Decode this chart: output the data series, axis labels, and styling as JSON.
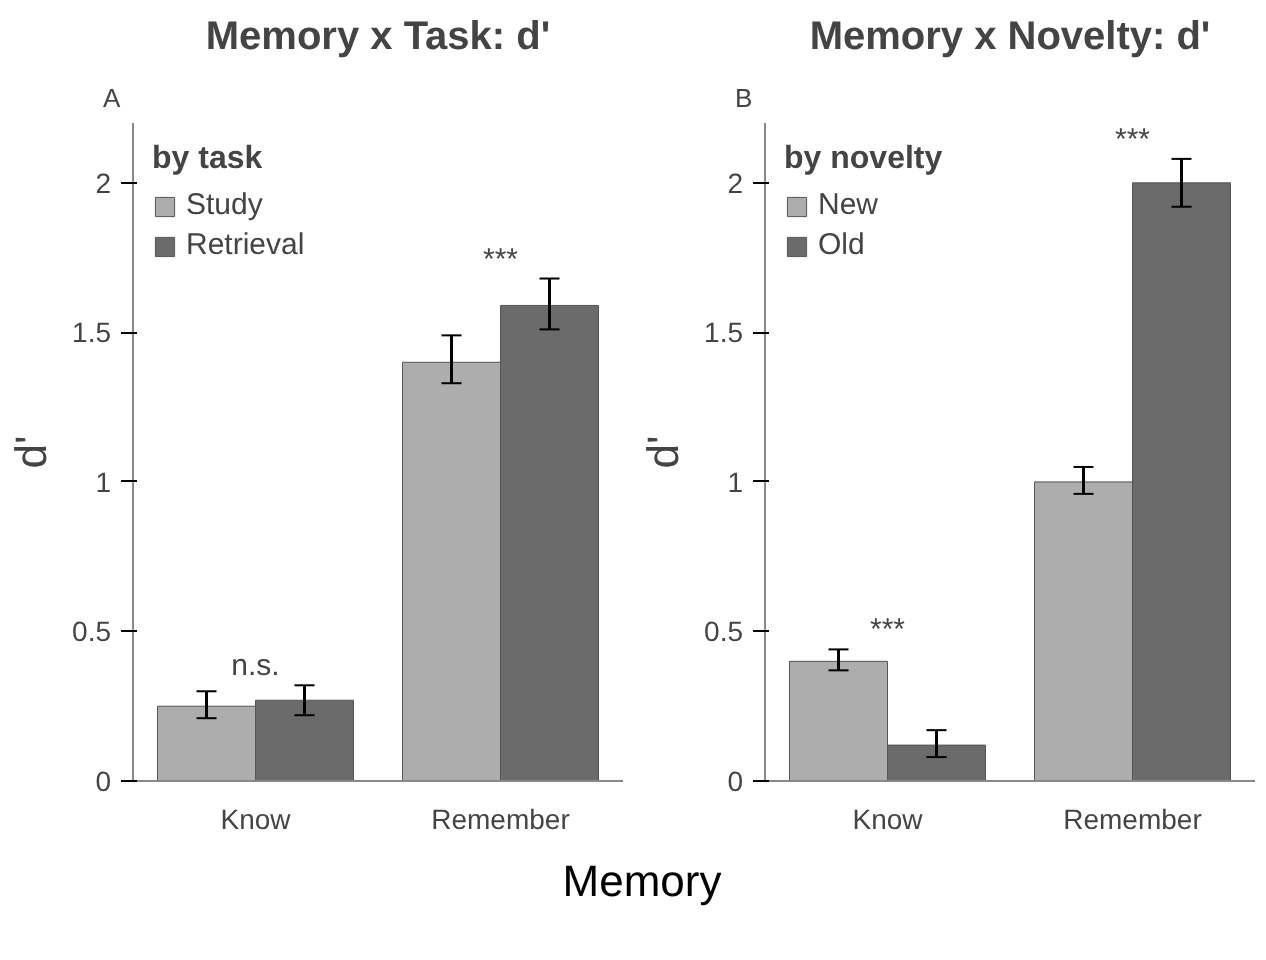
{
  "chart_data": [
    {
      "type": "bar",
      "title": "Memory x Task: d'",
      "ylabel": "d'",
      "xlabel": "Memory",
      "legend_title": "by task",
      "legend": "top left",
      "categories": [
        "Know",
        "Remember"
      ],
      "ylim": [
        0,
        2.2
      ],
      "yticks": [
        0,
        0.5,
        1,
        1.5,
        2
      ],
      "grid": false,
      "series": [
        {
          "name": "Study",
          "color": "#adadad",
          "values": [
            0.25,
            1.4
          ],
          "errors": [
            [
              0.21,
              0.3
            ],
            [
              1.33,
              1.49
            ]
          ]
        },
        {
          "name": "Retrieval",
          "color": "#6b6b6b",
          "values": [
            0.27,
            1.59
          ],
          "errors": [
            [
              0.22,
              0.32
            ],
            [
              1.51,
              1.68
            ]
          ]
        }
      ],
      "annotations": [
        "A",
        "n.s.",
        "***"
      ]
    },
    {
      "type": "bar",
      "title": "Memory x Novelty: d'",
      "ylabel": "d'",
      "legend_title": "by novelty",
      "legend": "top left",
      "categories": [
        "Know",
        "Remember"
      ],
      "ylim": [
        0,
        2.2
      ],
      "yticks": [
        0,
        0.5,
        1,
        1.5,
        2
      ],
      "grid": false,
      "series": [
        {
          "name": "New",
          "color": "#adadad",
          "values": [
            0.4,
            1.0
          ],
          "errors": [
            [
              0.37,
              0.44
            ],
            [
              0.96,
              1.05
            ]
          ]
        },
        {
          "name": "Old",
          "color": "#6b6b6b",
          "values": [
            0.12,
            2.0
          ],
          "errors": [
            [
              0.08,
              0.17
            ],
            [
              1.92,
              2.08
            ]
          ]
        }
      ],
      "annotations": [
        "B",
        "***",
        "***"
      ]
    }
  ]
}
